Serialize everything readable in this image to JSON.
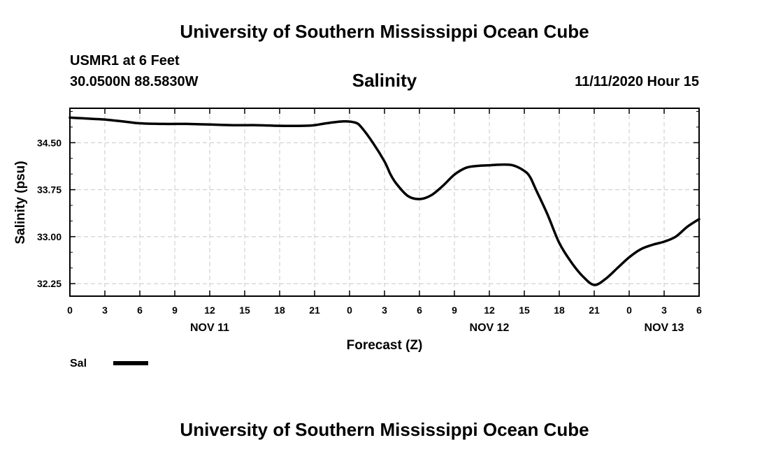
{
  "header": {
    "title": "University of Southern Mississippi Ocean Cube",
    "station": "USMR1 at 6 Feet",
    "coords": "30.0500N 88.5830W",
    "datetime": "11/11/2020 Hour 15"
  },
  "footer": {
    "title": "University of Southern Mississippi Ocean Cube"
  },
  "chart_data": {
    "type": "line",
    "title": "Salinity",
    "xlabel": "Forecast (Z)",
    "ylabel": "Salinity (psu)",
    "x_unit": "hours",
    "xlim": [
      0,
      54
    ],
    "ylim": [
      32.05,
      35.05
    ],
    "x_ticks": [
      {
        "x": 0,
        "label": "0"
      },
      {
        "x": 3,
        "label": "3"
      },
      {
        "x": 6,
        "label": "6"
      },
      {
        "x": 9,
        "label": "9"
      },
      {
        "x": 12,
        "label": "12"
      },
      {
        "x": 15,
        "label": "15"
      },
      {
        "x": 18,
        "label": "18"
      },
      {
        "x": 21,
        "label": "21"
      },
      {
        "x": 24,
        "label": "0"
      },
      {
        "x": 27,
        "label": "3"
      },
      {
        "x": 30,
        "label": "6"
      },
      {
        "x": 33,
        "label": "9"
      },
      {
        "x": 36,
        "label": "12"
      },
      {
        "x": 39,
        "label": "15"
      },
      {
        "x": 42,
        "label": "18"
      },
      {
        "x": 45,
        "label": "21"
      },
      {
        "x": 48,
        "label": "0"
      },
      {
        "x": 51,
        "label": "3"
      },
      {
        "x": 54,
        "label": "6"
      }
    ],
    "date_labels": [
      {
        "x": 12,
        "label": "NOV 11"
      },
      {
        "x": 36,
        "label": "NOV 12"
      },
      {
        "x": 51,
        "label": "NOV 13"
      }
    ],
    "y_ticks": [
      {
        "y": 32.25,
        "label": "32.25"
      },
      {
        "y": 33.0,
        "label": "33.00"
      },
      {
        "y": 33.75,
        "label": "33.75"
      },
      {
        "y": 34.5,
        "label": "34.50"
      }
    ],
    "grid": true,
    "legend_position": "bottom-left",
    "series": [
      {
        "name": "Sal",
        "color": "#000000",
        "points": [
          [
            0,
            34.9
          ],
          [
            1,
            34.89
          ],
          [
            2,
            34.88
          ],
          [
            3,
            34.87
          ],
          [
            4,
            34.85
          ],
          [
            5,
            34.83
          ],
          [
            6,
            34.81
          ],
          [
            8,
            34.8
          ],
          [
            10,
            34.8
          ],
          [
            12,
            34.79
          ],
          [
            14,
            34.78
          ],
          [
            16,
            34.78
          ],
          [
            18,
            34.77
          ],
          [
            20,
            34.77
          ],
          [
            21,
            34.78
          ],
          [
            22,
            34.81
          ],
          [
            23.5,
            34.84
          ],
          [
            24.5,
            34.82
          ],
          [
            25,
            34.75
          ],
          [
            26,
            34.5
          ],
          [
            27,
            34.2
          ],
          [
            27.5,
            34.0
          ],
          [
            28,
            33.85
          ],
          [
            29,
            33.65
          ],
          [
            30,
            33.6
          ],
          [
            31,
            33.66
          ],
          [
            32,
            33.81
          ],
          [
            33,
            33.99
          ],
          [
            34,
            34.1
          ],
          [
            35,
            34.13
          ],
          [
            36,
            34.14
          ],
          [
            37,
            34.15
          ],
          [
            38,
            34.14
          ],
          [
            39,
            34.05
          ],
          [
            39.5,
            33.95
          ],
          [
            40,
            33.75
          ],
          [
            41,
            33.35
          ],
          [
            42,
            32.9
          ],
          [
            43,
            32.6
          ],
          [
            44,
            32.37
          ],
          [
            45,
            32.23
          ],
          [
            46,
            32.33
          ],
          [
            47,
            32.5
          ],
          [
            48,
            32.67
          ],
          [
            49,
            32.8
          ],
          [
            50,
            32.87
          ],
          [
            51,
            32.92
          ],
          [
            52,
            33.0
          ],
          [
            53,
            33.16
          ],
          [
            54,
            33.28
          ]
        ]
      }
    ]
  }
}
